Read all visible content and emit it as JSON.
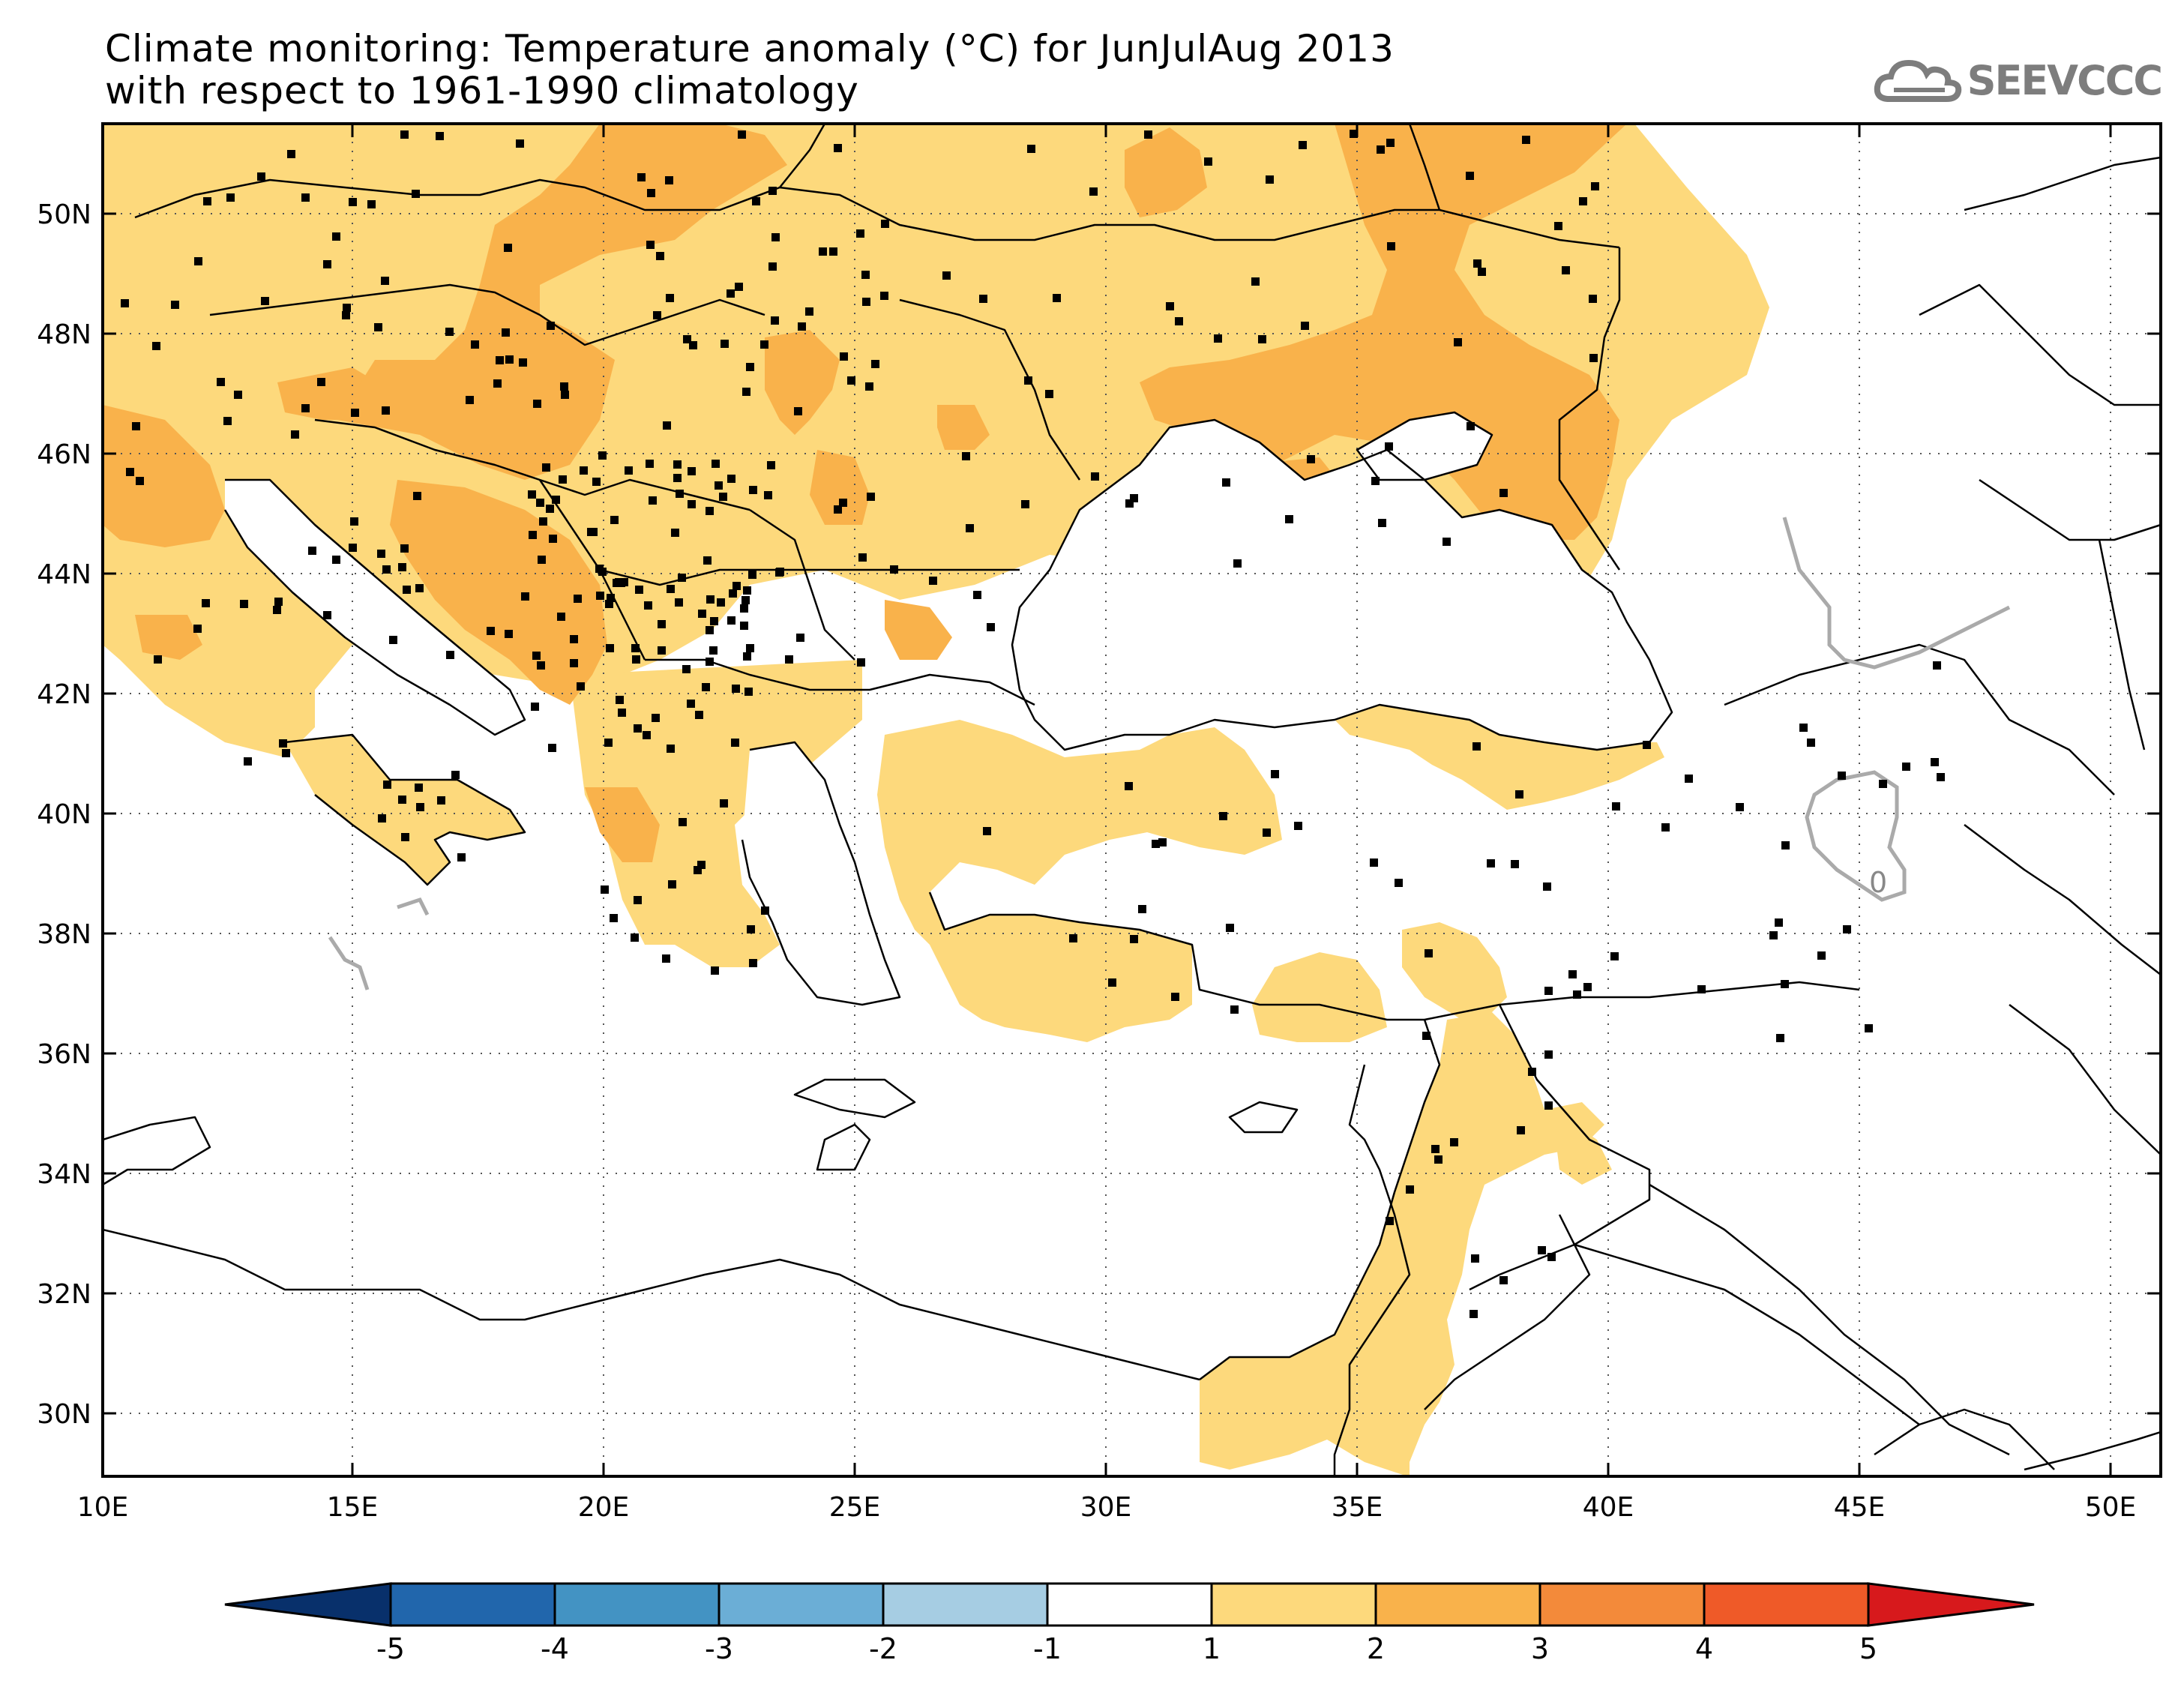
{
  "title": {
    "line1": "Climate monitoring: Temperature anomaly (°C) for JunJulAug 2013",
    "line2": "with respect to 1961-1990 climatology"
  },
  "logo": {
    "text": "SEEVCCC",
    "icon": "cloud-icon"
  },
  "map": {
    "lon_range": [
      10,
      51
    ],
    "lat_range": [
      29,
      51.5
    ],
    "lon_ticks": [
      "10E",
      "15E",
      "20E",
      "25E",
      "30E",
      "35E",
      "40E",
      "45E",
      "50E"
    ],
    "lat_ticks": [
      "30N",
      "32N",
      "34N",
      "36N",
      "38N",
      "40N",
      "42N",
      "44N",
      "46N",
      "48N",
      "50N"
    ],
    "contour_label": "0",
    "colors": {
      "anom_1_2": "#fdd97c",
      "anom_2_3": "#f9b24b",
      "anom_3_4": "#f38a3a",
      "land_line": "#000000",
      "grid": "#555555"
    }
  },
  "colorbar": {
    "labels": [
      "-5",
      "-4",
      "-3",
      "-2",
      "-1",
      "1",
      "2",
      "3",
      "4",
      "5"
    ],
    "colors": [
      "#08306b",
      "#2166ac",
      "#4393c3",
      "#6baed6",
      "#a6cde3",
      "#ffffff",
      "#fdd97c",
      "#f9b24b",
      "#f38a3a",
      "#ef5a28",
      "#d7191c"
    ]
  }
}
